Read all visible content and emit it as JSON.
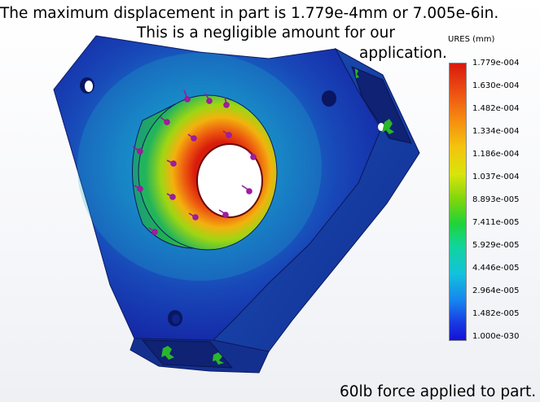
{
  "caption": {
    "line1": "The maximum displacement in part is 1.779e-4mm or 7.005e-6in.",
    "line2": "This is a negligible amount for our",
    "line3": "application.",
    "bottom": "60lb force applied to part."
  },
  "legend": {
    "title": "URES (mm)",
    "ticks": [
      "1.779e-004",
      "1.630e-004",
      "1.482e-004",
      "1.334e-004",
      "1.186e-004",
      "1.037e-004",
      "8.893e-005",
      "7.411e-005",
      "5.929e-005",
      "4.446e-005",
      "2.964e-005",
      "1.482e-005",
      "1.000e-030"
    ]
  },
  "colors": {
    "part_low": "#1428c8",
    "part_mid": "#19a0d2",
    "hub_high": "#d21e0a",
    "arrow": "#a01ea0",
    "fixture": "#28b428"
  }
}
